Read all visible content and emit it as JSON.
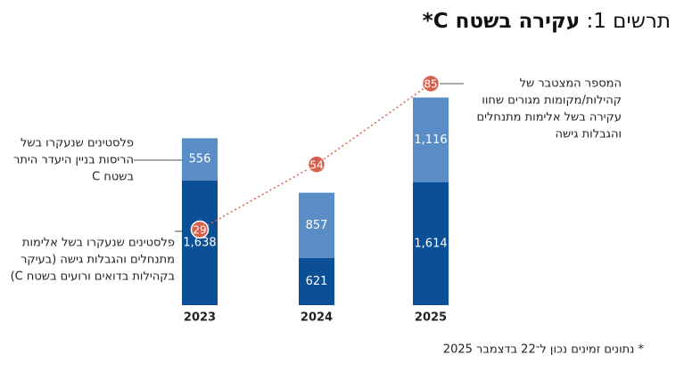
{
  "chart_data": {
    "type": "bar",
    "title": {
      "prefix": "תרשים 1:",
      "main": "עקירה בשטח C*"
    },
    "categories": [
      "2023",
      "2024",
      "2025"
    ],
    "stacked": true,
    "series": [
      {
        "color": "#0b4f97",
        "values": [
          1638,
          621,
          1614
        ],
        "value_labels": [
          "1,638",
          "621",
          "1,614"
        ]
      },
      {
        "color": "#5a8cc6",
        "values": [
          556,
          857,
          1116
        ],
        "value_labels": [
          "556",
          "857",
          "1,116"
        ]
      }
    ],
    "line": {
      "type": "line",
      "color": "#d6604d",
      "values": [
        29,
        54,
        85
      ]
    },
    "annotations": {
      "demolitions": [
        "פלסטינים שנעקרו בשל",
        "הריסות בניין היעדר היתר",
        "בשטח C"
      ],
      "violence": [
        "פלסטינים שנעקרו בשל אלימות",
        "מתנחלים והגבלות גישה (בעיקר",
        "בקהילות בדואים ורועים בשטח C)"
      ],
      "cumulative": [
        "המספר המצטבר של",
        "קהילות/מקומות מגורים שחוו",
        "עקירה בשל אלימות מתנחלים",
        "והגבלות גישה"
      ]
    },
    "footnote": "* נתונים זמינים נכון ל־22 בדצמבר 2025"
  }
}
